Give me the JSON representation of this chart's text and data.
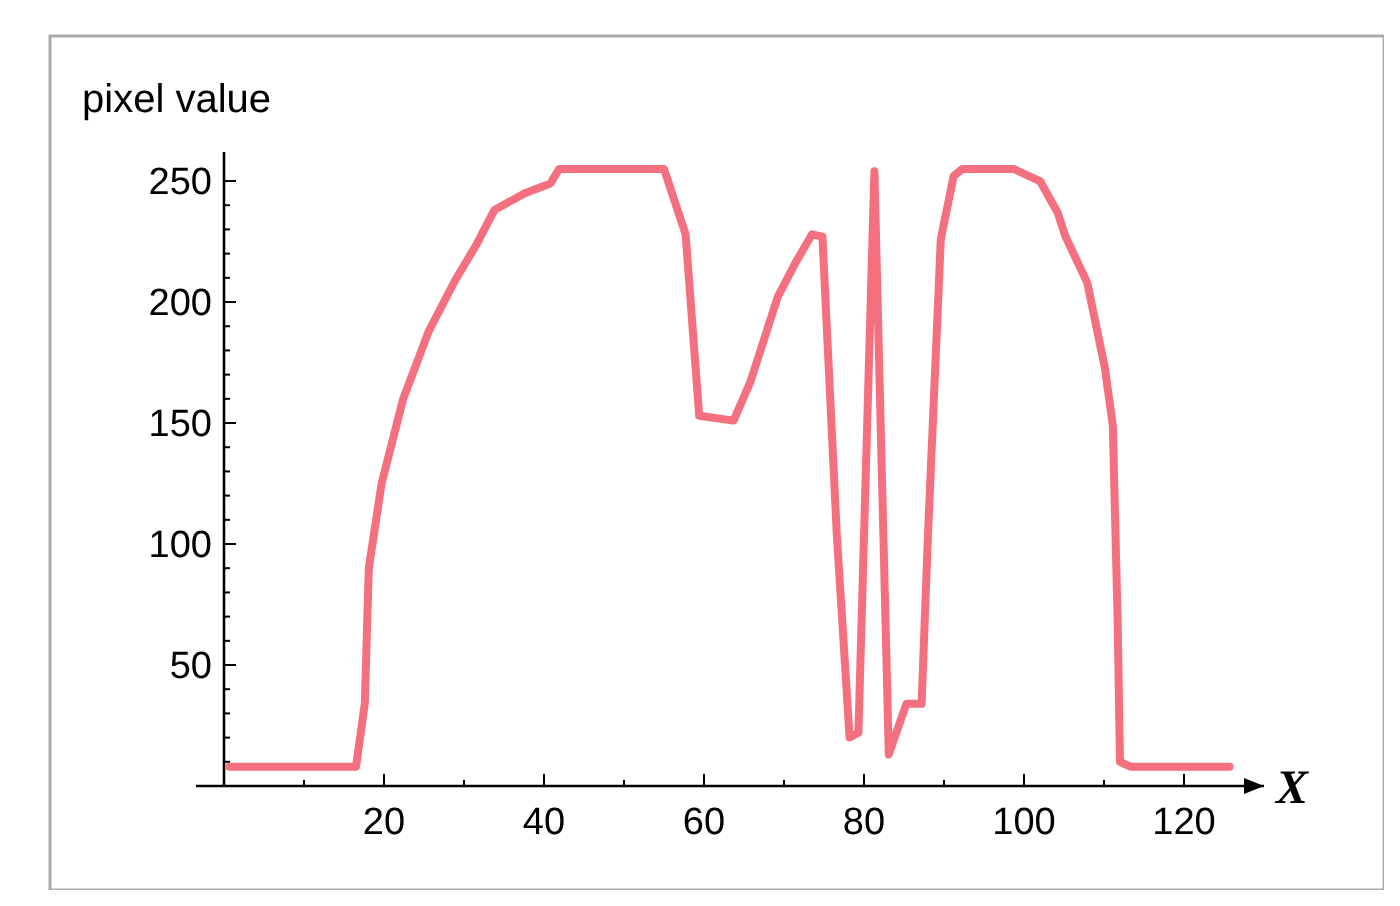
{
  "chart_data": {
    "type": "line",
    "xlabel": "X",
    "ylabel": "pixel value",
    "xlim": [
      0,
      130
    ],
    "ylim": [
      0,
      262
    ],
    "xticks": [
      {
        "value": 10,
        "label": null
      },
      20,
      {
        "value": 30,
        "label": null
      },
      40,
      {
        "value": 50,
        "label": null
      },
      60,
      {
        "value": 70,
        "label": null
      },
      80,
      {
        "value": 90,
        "label": null
      },
      100,
      {
        "value": 110,
        "label": null
      },
      120
    ],
    "yticks": [
      {
        "value": 10,
        "label": null
      },
      {
        "value": 20,
        "label": null
      },
      {
        "value": 30,
        "label": null
      },
      {
        "value": 40,
        "label": null
      },
      50,
      {
        "value": 60,
        "label": null
      },
      {
        "value": 70,
        "label": null
      },
      {
        "value": 80,
        "label": null
      },
      {
        "value": 90,
        "label": null
      },
      100,
      {
        "value": 110,
        "label": null
      },
      {
        "value": 120,
        "label": null
      },
      {
        "value": 130,
        "label": null
      },
      {
        "value": 140,
        "label": null
      },
      150,
      {
        "value": 160,
        "label": null
      },
      {
        "value": 170,
        "label": null
      },
      {
        "value": 180,
        "label": null
      },
      {
        "value": 190,
        "label": null
      },
      200,
      {
        "value": 210,
        "label": null
      },
      {
        "value": 220,
        "label": null
      },
      {
        "value": 230,
        "label": null
      },
      {
        "value": 240,
        "label": null
      },
      250
    ],
    "grid": false,
    "marker": "none",
    "line_style": "solid",
    "series": [
      {
        "color": "#f5707f",
        "x": [
          0.7,
          16.5,
          17.6,
          18.1,
          19.7,
          22.4,
          25.6,
          28.9,
          31.6,
          33.8,
          37.6,
          40.8,
          41.9,
          54.4,
          55,
          57.7,
          59.4,
          63.7,
          65.8,
          69.2,
          71.4,
          73.5,
          74.8,
          76.6,
          78.2,
          79.3,
          81.3,
          83.1,
          85.3,
          87.2,
          88,
          89.6,
          91.2,
          92.3,
          98.7,
          102,
          104.2,
          105.2,
          107.9,
          110.1,
          111.1,
          111.7,
          112,
          113.3,
          125.7
        ],
        "values": [
          8,
          8,
          34,
          90,
          125,
          160,
          188,
          209,
          224,
          238,
          245,
          249,
          255,
          255,
          255,
          228,
          153,
          151,
          167,
          202,
          216,
          228,
          227,
          104,
          20,
          22,
          254,
          13,
          34,
          34,
          104,
          226,
          252,
          255,
          255,
          250,
          237,
          227,
          208,
          173,
          149,
          69,
          10,
          8,
          8
        ]
      }
    ]
  }
}
